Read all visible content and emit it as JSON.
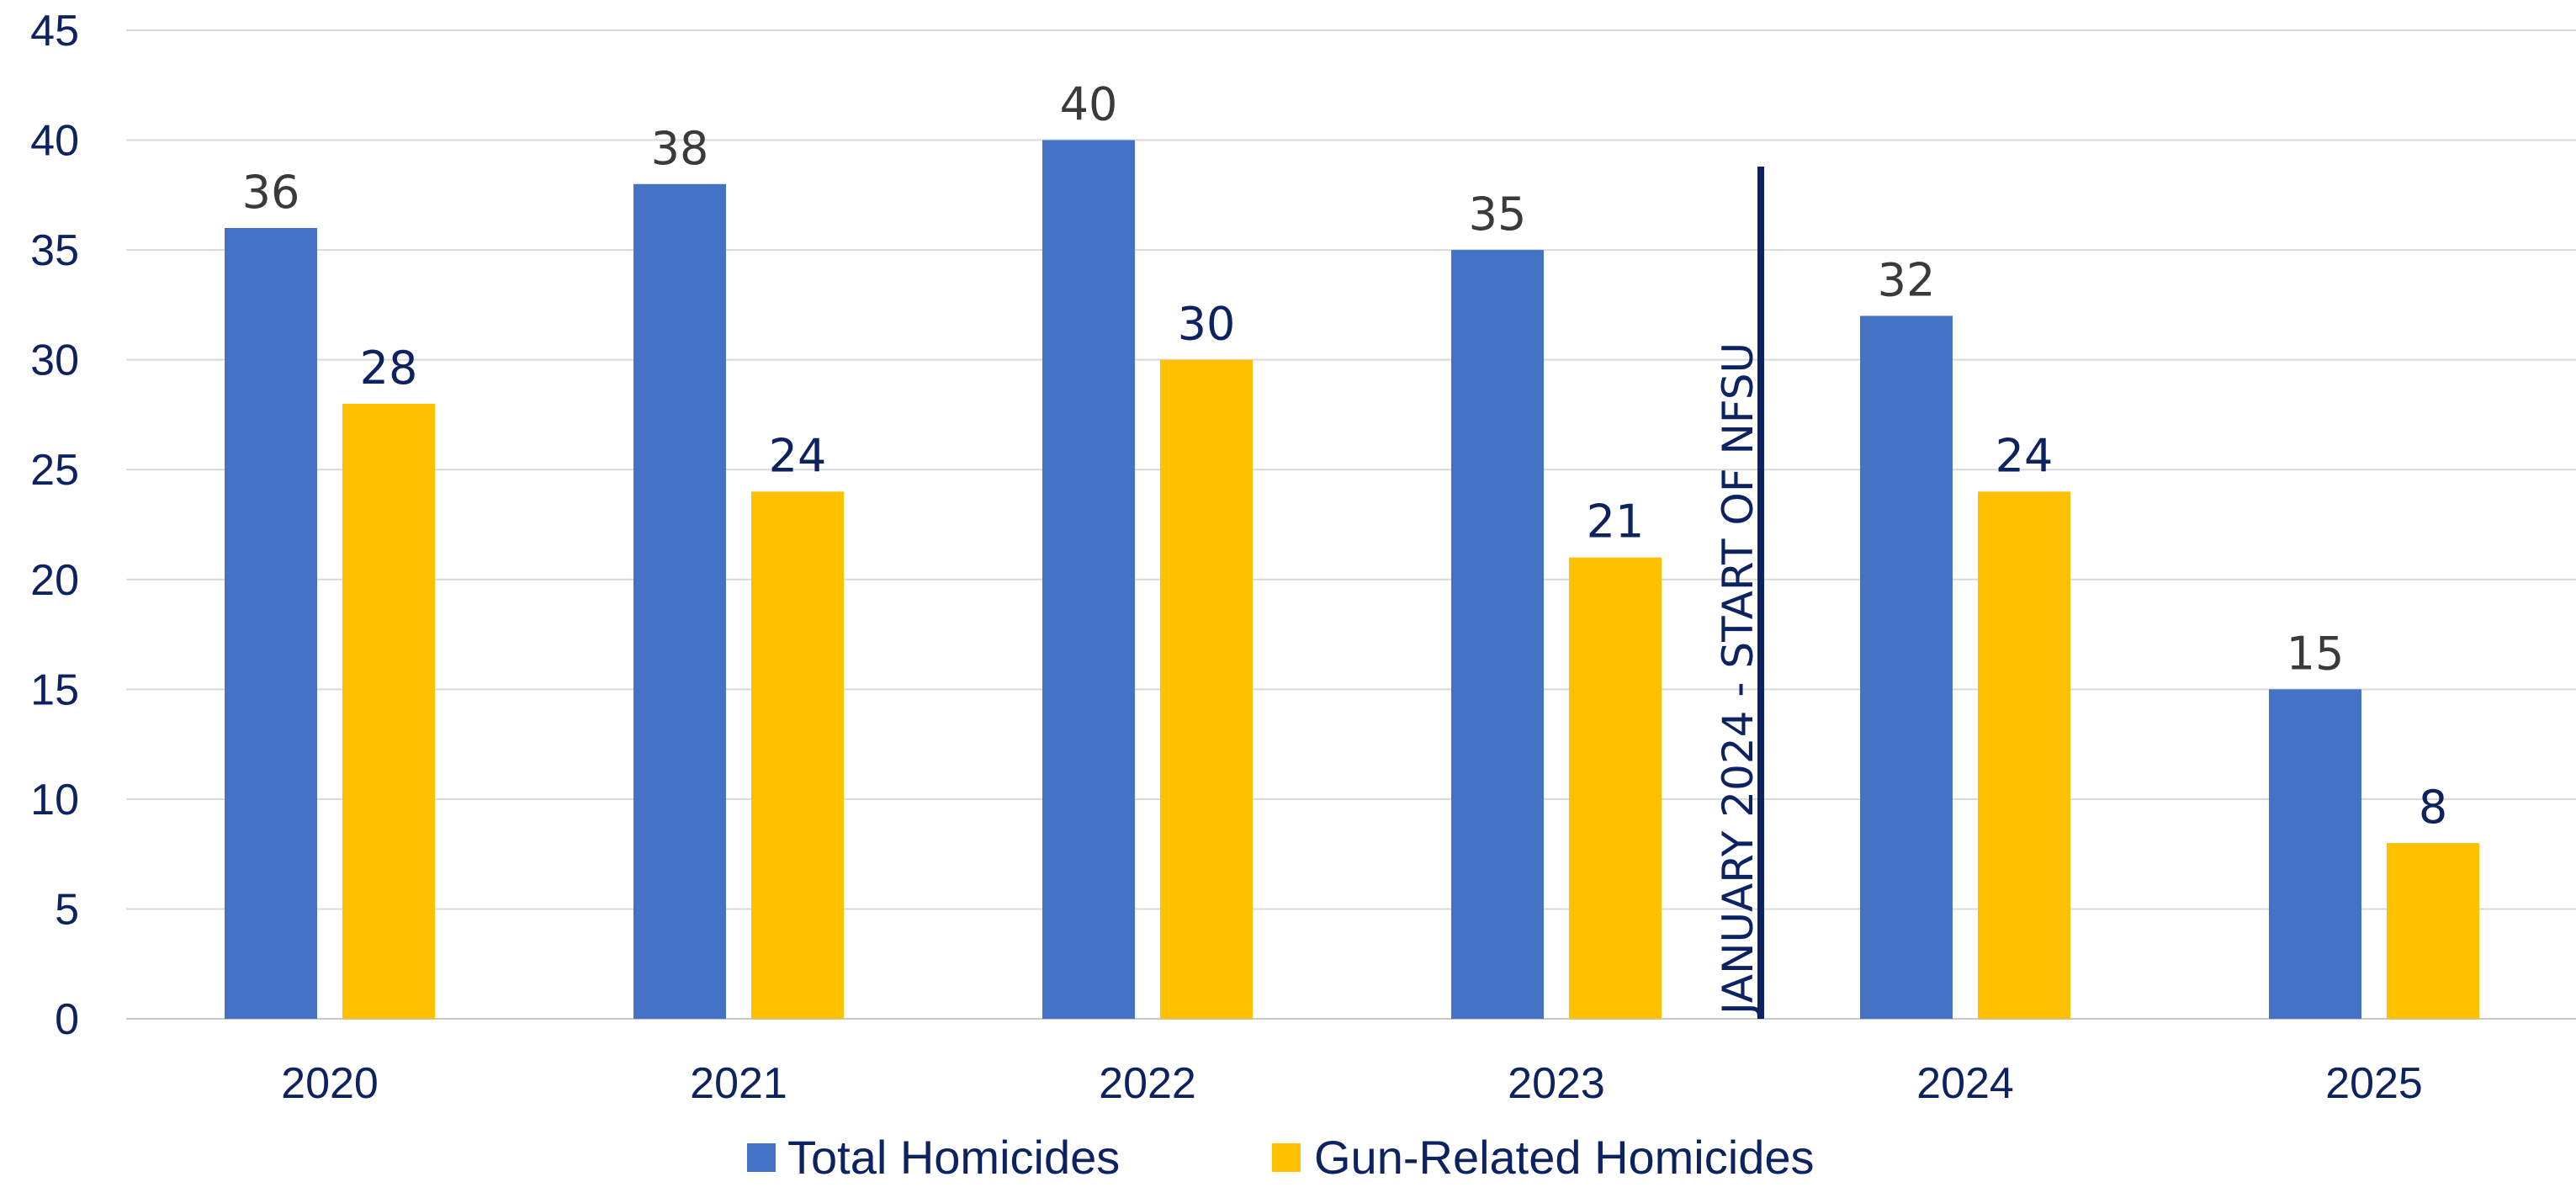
{
  "chart_data": {
    "type": "bar",
    "categories": [
      "2020",
      "2021",
      "2022",
      "2023",
      "2024",
      "2025"
    ],
    "series": [
      {
        "name": "Total Homicides",
        "values": [
          36,
          38,
          40,
          35,
          32,
          15
        ],
        "color": "#4472c4"
      },
      {
        "name": "Gun-Related Homicides",
        "values": [
          28,
          24,
          30,
          21,
          24,
          8
        ],
        "color": "#ffc000"
      }
    ],
    "ylim": [
      0,
      45
    ],
    "yticks": [
      0,
      5,
      10,
      15,
      20,
      25,
      30,
      35,
      40,
      45
    ],
    "grid": true,
    "legend": "bottom",
    "annotation": {
      "text": "JANUARY 2024 - START OF NFSU",
      "between": [
        "2023",
        "2024"
      ],
      "color": "#0d2260"
    }
  }
}
